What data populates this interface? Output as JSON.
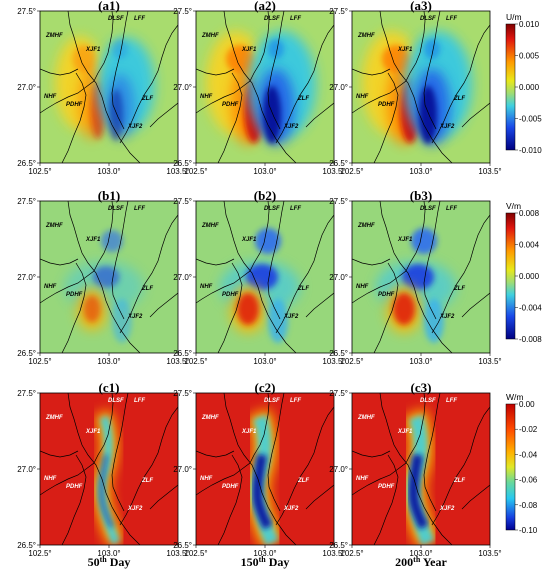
{
  "panel_titles": [
    [
      "(a1)",
      "(a2)",
      "(a3)"
    ],
    [
      "(b1)",
      "(b2)",
      "(b3)"
    ],
    [
      "(c1)",
      "(c2)",
      "(c3)"
    ]
  ],
  "lat_ticks": [
    "27.5°",
    "27.0°",
    "26.5°"
  ],
  "lon_ticks": [
    "102.5°",
    "103.0°",
    "103.5°"
  ],
  "fault_labels": [
    "ZMHF",
    "DLSF",
    "LFF",
    "XJF1",
    "NHF",
    "PDHF",
    "ZLF",
    "XJF2"
  ],
  "column_titles": [
    {
      "num": "50",
      "sup": "th",
      "rest": " Day"
    },
    {
      "num": "150",
      "sup": "th",
      "rest": " Day"
    },
    {
      "num": "200",
      "sup": "th",
      "rest": " Year"
    }
  ],
  "colorbars": [
    {
      "title": "U/m",
      "ticks": [
        "0.010",
        "0.005",
        "0.000",
        "-0.005",
        "-0.010"
      ]
    },
    {
      "title": "V/m",
      "ticks": [
        "0.008",
        "0.004",
        "0.000",
        "-0.004",
        "-0.008"
      ]
    },
    {
      "title": "W/m",
      "ticks": [
        "0.00",
        "-0.02",
        "-0.04",
        "-0.06",
        "-0.08",
        "-0.10"
      ]
    }
  ],
  "colors": {
    "u_mid": "#a8dc6e",
    "v_mid": "#97d77b",
    "w_bg": "#d81e16"
  }
}
